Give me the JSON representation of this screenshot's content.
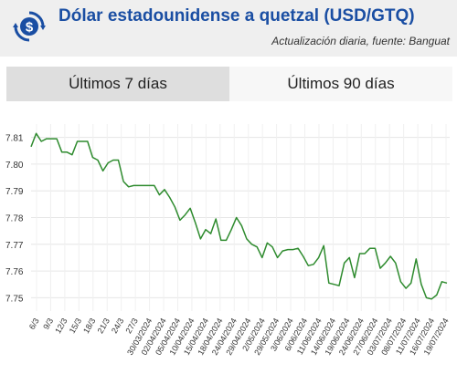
{
  "header": {
    "title": "Dólar estadounidense a quetzal (USD/GTQ)",
    "subtitle": "Actualización diaria, fuente: Banguat",
    "logo_icon": "dollar-exchange-icon",
    "accent_color": "#1a4ea3"
  },
  "tabs": [
    {
      "label": "Últimos 7 días",
      "active": false
    },
    {
      "label": "Últimos 90 días",
      "active": true
    }
  ],
  "chart_data": {
    "type": "line",
    "title": "",
    "xlabel": "",
    "ylabel": "",
    "ylim": [
      7.745,
      7.815
    ],
    "yticks": [
      "7.75",
      "7.76",
      "7.77",
      "7.78",
      "7.79",
      "7.80",
      "7.81"
    ],
    "xticks": [
      "6/3",
      "9/3",
      "12/3",
      "15/3",
      "18/3",
      "21/3",
      "24/3",
      "27/3",
      "30/03/2024",
      "02/04/2024",
      "05/04/2024",
      "10/04/2024",
      "15/04/2024",
      "18/04/2024",
      "24/04/2024",
      "29/04/2024",
      "2/05/2024",
      "29/05/2024",
      "3/06/2024",
      "6/06/2024",
      "11/06/2024",
      "14/06/2024",
      "19/06/2024",
      "24/06/2024",
      "27/06/2024",
      "03/07/2024",
      "08/07/2024",
      "11/07/2024",
      "16/07/2024",
      "19/07/2024"
    ],
    "grid": true,
    "line_color": "#2e8b2e",
    "series": [
      {
        "values": [
          7.8065,
          7.8115,
          7.8085,
          7.8095,
          7.8095,
          7.8095,
          7.8045,
          7.8045,
          7.8035,
          7.8085,
          7.8085,
          7.8085,
          7.8025,
          7.8015,
          7.7975,
          7.8005,
          7.8015,
          7.8015,
          7.7935,
          7.7915,
          7.792,
          7.792,
          7.792,
          7.792,
          7.792,
          7.7885,
          7.7905,
          7.7875,
          7.784,
          7.779,
          7.781,
          7.7835,
          7.778,
          7.772,
          7.7755,
          7.774,
          7.7795,
          7.7715,
          7.7715,
          7.7755,
          7.78,
          7.777,
          7.772,
          7.77,
          7.769,
          7.765,
          7.7705,
          7.769,
          7.765,
          7.7675,
          7.768,
          7.768,
          7.7685,
          7.7655,
          7.762,
          7.7625,
          7.765,
          7.7695,
          7.7555,
          7.755,
          7.7545,
          7.763,
          7.765,
          7.7575,
          7.7665,
          7.7665,
          7.7685,
          7.7685,
          7.761,
          7.763,
          7.7655,
          7.763,
          7.756,
          7.7535,
          7.7555,
          7.7645,
          7.755,
          7.75,
          7.7495,
          7.751,
          7.756,
          7.7555
        ]
      }
    ]
  }
}
